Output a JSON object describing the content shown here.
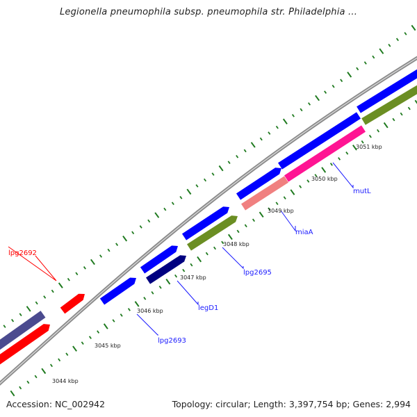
{
  "title": "Legionella pneumophila subsp. pneumophila str. Philadelphia ...",
  "footer": {
    "accession": "Accession: NC_002942",
    "summary": "Topology: circular; Length: 3,397,754 bp; Genes: 2,994"
  },
  "colors": {
    "backbone": "#8a8a8a",
    "ticks": "#1f7a1f",
    "tick_label": "#222222",
    "label_blue": "#1a1aff",
    "label_red": "#ff0000"
  },
  "tick_labels": [
    "3044 kbp",
    "3045 kbp",
    "3046 kbp",
    "3047 kbp",
    "3048 kbp",
    "3049 kbp",
    "3050 kbp",
    "3051 kbp"
  ],
  "genes": [
    {
      "id": "purple-left",
      "color": "#4b4b8f"
    },
    {
      "id": "red-left",
      "color": "#ff0000"
    },
    {
      "id": "lpg2692",
      "label": "lpg2692",
      "color": "#ff0000",
      "label_color": "#ff0000"
    },
    {
      "id": "lpg2693",
      "label": "lpg2693",
      "color": "#0000ff",
      "label_color": "#1a1aff"
    },
    {
      "id": "blue-2",
      "color": "#0000ff"
    },
    {
      "id": "legD1",
      "label": "legD1",
      "color": "#000080",
      "label_color": "#1a1aff"
    },
    {
      "id": "blue-3",
      "color": "#0000ff"
    },
    {
      "id": "lpg2695",
      "label": "lpg2695",
      "color": "#6b8e23",
      "label_color": "#1a1aff"
    },
    {
      "id": "blue-4",
      "color": "#0000ff"
    },
    {
      "id": "miaA",
      "label": "miaA",
      "color": "#f08080",
      "label_color": "#1a1aff"
    },
    {
      "id": "blue-5",
      "color": "#0000ff"
    },
    {
      "id": "mutL",
      "label": "mutL",
      "color": "#ff1493",
      "label_color": "#1a1aff"
    },
    {
      "id": "blue-6",
      "color": "#0000ff"
    },
    {
      "id": "green-right",
      "color": "#6b8e23"
    }
  ]
}
